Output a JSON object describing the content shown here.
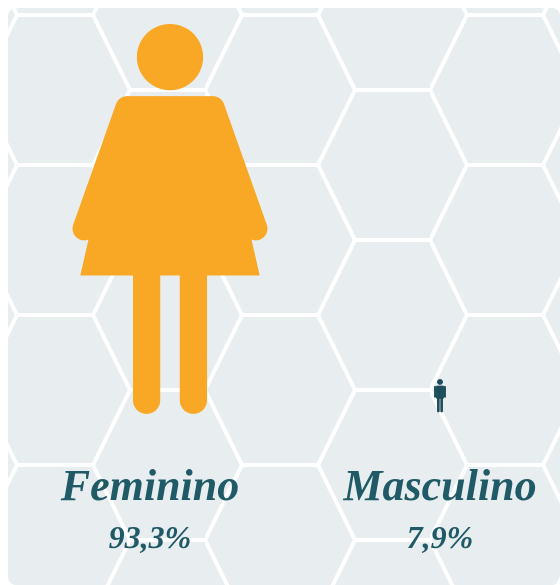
{
  "chart_data": {
    "type": "pictogram",
    "categories": [
      "Feminino",
      "Masculino"
    ],
    "values": [
      93.3,
      7.9
    ],
    "value_labels": [
      "93,3%",
      "7,9%"
    ],
    "colors": [
      "#f9a825",
      "#1d4e5c"
    ],
    "label_color": "#1f5a66"
  }
}
